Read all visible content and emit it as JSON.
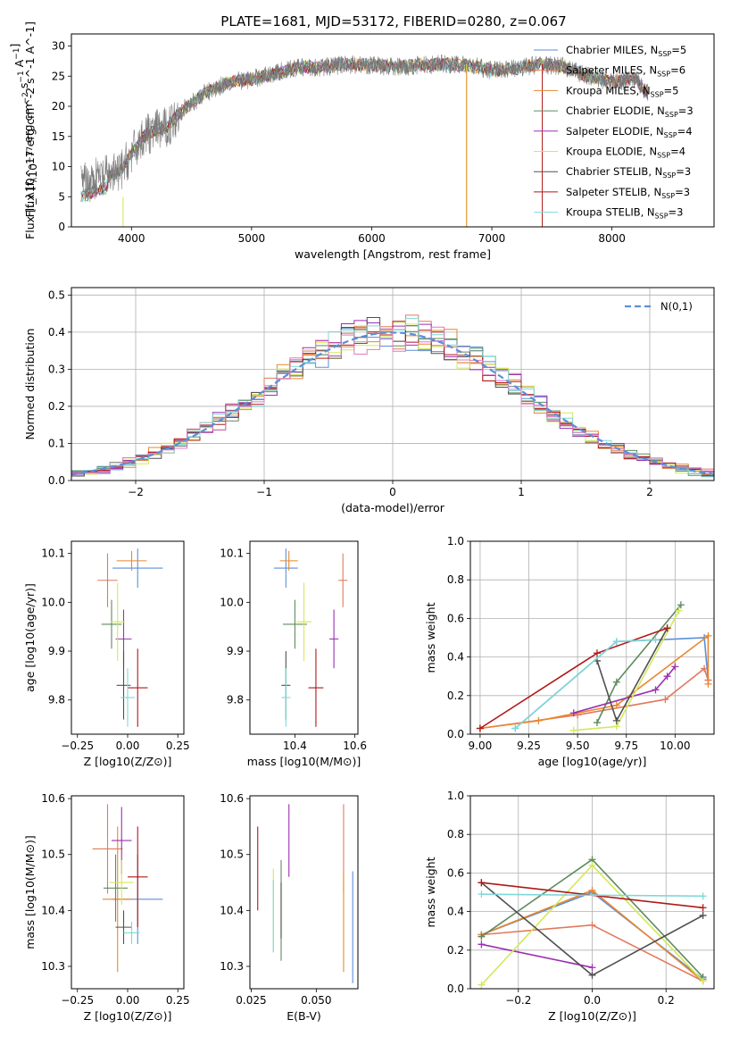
{
  "figure": {
    "title": "PLATE=1681, MJD=53172, FIBERID=0280, z=0.067",
    "series": [
      {
        "name": "Chabrier MILES",
        "nssp": "5",
        "color": "#5b8fd6"
      },
      {
        "name": "Salpeter MILES",
        "nssp": "6",
        "color": "#e07a5f"
      },
      {
        "name": "Kroupa MILES",
        "nssp": "5",
        "color": "#e8872e"
      },
      {
        "name": "Chabrier ELODIE",
        "nssp": "3",
        "color": "#5e8a5e"
      },
      {
        "name": "Salpeter ELODIE",
        "nssp": "4",
        "color": "#9b30b0"
      },
      {
        "name": "Kroupa ELODIE",
        "nssp": "4",
        "color": "#d4e85a"
      },
      {
        "name": "Chabrier STELIB",
        "nssp": "3",
        "color": "#505050"
      },
      {
        "name": "Salpeter STELIB",
        "nssp": "3",
        "color": "#b01818"
      },
      {
        "name": "Kroupa STELIB",
        "nssp": "3",
        "color": "#7fd8d8"
      }
    ],
    "extra_colors": {
      "pink": "#e377c2"
    }
  },
  "chart_data": [
    {
      "id": "spectrum",
      "type": "line",
      "title": "PLATE=1681, MJD=53172, FIBERID=0280, z=0.067",
      "xlabel": "wavelength [Angstrom, rest frame]",
      "ylabel": "Flux [f_λ10^-17 erg cm^-2 s^-1 A^-1]",
      "xlim": [
        3500,
        8850
      ],
      "ylim": [
        0,
        32
      ],
      "xticks": [
        4000,
        5000,
        6000,
        7000,
        8000
      ],
      "yticks": [
        0,
        5,
        10,
        15,
        20,
        25,
        30
      ],
      "legend": "top-right",
      "continuum": [
        [
          3580,
          7
        ],
        [
          3700,
          8
        ],
        [
          3900,
          9
        ],
        [
          4000,
          12
        ],
        [
          4100,
          15
        ],
        [
          4200,
          16
        ],
        [
          4300,
          16.5
        ],
        [
          4400,
          19
        ],
        [
          4600,
          22
        ],
        [
          4800,
          24
        ],
        [
          5000,
          24.5
        ],
        [
          5200,
          25.5
        ],
        [
          5400,
          26.5
        ],
        [
          5600,
          26.5
        ],
        [
          5800,
          27
        ],
        [
          6000,
          26.8
        ],
        [
          6200,
          26.5
        ],
        [
          6400,
          26.8
        ],
        [
          6600,
          27
        ],
        [
          6800,
          26.8
        ],
        [
          7000,
          26
        ],
        [
          7200,
          26.3
        ],
        [
          7400,
          27
        ],
        [
          7600,
          26.5
        ],
        [
          7800,
          25
        ],
        [
          8000,
          24
        ],
        [
          8200,
          24.5
        ],
        [
          8300,
          22
        ]
      ]
    },
    {
      "id": "residuals",
      "type": "bar",
      "xlabel": "(data-model)/error",
      "ylabel": "Normed distribution",
      "xlim": [
        -2.5,
        2.5
      ],
      "ylim": [
        0,
        0.52
      ],
      "xticks": [
        -2,
        -1,
        0,
        1,
        2
      ],
      "yticks": [
        0.0,
        0.1,
        0.2,
        0.3,
        0.4,
        0.5
      ],
      "grid": true,
      "legend": "top-right",
      "legend_label": "N(0,1)",
      "bin_width": 0.1
    },
    {
      "id": "age-vs-Z",
      "type": "scatter",
      "xlabel": "Z [log10(Z/Z⊙)]",
      "ylabel": "age [log10(age/yr)]",
      "xlim": [
        -0.28,
        0.28
      ],
      "ylim": [
        9.73,
        10.125
      ],
      "xticks": [
        -0.25,
        0.0,
        0.25
      ],
      "yticks": [
        9.8,
        9.9,
        10.0,
        10.1
      ],
      "points": [
        {
          "s": 0,
          "x": 0.05,
          "y": 10.07,
          "ex": 0.25,
          "ey": 0.04
        },
        {
          "s": 1,
          "x": -0.1,
          "y": 10.045,
          "ex": 0.1,
          "ey": 0.055
        },
        {
          "s": 2,
          "x": 0.02,
          "y": 10.085,
          "ex": 0.15,
          "ey": 0.02
        },
        {
          "s": 3,
          "x": -0.08,
          "y": 9.955,
          "ex": 0.1,
          "ey": 0.05
        },
        {
          "s": 4,
          "x": -0.02,
          "y": 9.925,
          "ex": 0.08,
          "ey": 0.06
        },
        {
          "s": 5,
          "x": -0.05,
          "y": 9.96,
          "ex": 0.07,
          "ey": 0.08
        },
        {
          "s": 6,
          "x": -0.02,
          "y": 9.83,
          "ex": 0.07,
          "ey": 0.07
        },
        {
          "s": 7,
          "x": 0.05,
          "y": 9.825,
          "ex": 0.1,
          "ey": 0.08
        },
        {
          "s": 8,
          "x": 0.0,
          "y": 9.805,
          "ex": 0.07,
          "ey": 0.06
        }
      ]
    },
    {
      "id": "age-vs-mass",
      "type": "scatter",
      "xlabel": "mass [log10(M/M⊙)]",
      "ylabel": "",
      "xlim": [
        10.25,
        10.61
      ],
      "ylim": [
        9.73,
        10.125
      ],
      "xticks": [
        10.4,
        10.6
      ],
      "yticks": [
        9.8,
        9.9,
        10.0,
        10.1
      ],
      "points": [
        {
          "s": 0,
          "x": 10.37,
          "y": 10.07,
          "ex": 0.08,
          "ey": 0.04
        },
        {
          "s": 1,
          "x": 10.56,
          "y": 10.045,
          "ex": 0.03,
          "ey": 0.055
        },
        {
          "s": 2,
          "x": 10.38,
          "y": 10.085,
          "ex": 0.06,
          "ey": 0.02
        },
        {
          "s": 3,
          "x": 10.4,
          "y": 9.955,
          "ex": 0.08,
          "ey": 0.05
        },
        {
          "s": 4,
          "x": 10.53,
          "y": 9.925,
          "ex": 0.03,
          "ey": 0.06
        },
        {
          "s": 5,
          "x": 10.43,
          "y": 9.96,
          "ex": 0.05,
          "ey": 0.08
        },
        {
          "s": 6,
          "x": 10.37,
          "y": 9.83,
          "ex": 0.03,
          "ey": 0.07
        },
        {
          "s": 7,
          "x": 10.47,
          "y": 9.825,
          "ex": 0.05,
          "ey": 0.08
        },
        {
          "s": 8,
          "x": 10.37,
          "y": 9.805,
          "ex": 0.03,
          "ey": 0.06
        }
      ]
    },
    {
      "id": "mass-weight-vs-age",
      "type": "line",
      "xlabel": "age [log10(age/yr)]",
      "ylabel": "mass weight",
      "xlim": [
        8.95,
        10.2
      ],
      "ylim": [
        0,
        1
      ],
      "xticks": [
        9.0,
        9.25,
        9.5,
        9.75,
        10.0
      ],
      "yticks": [
        0.0,
        0.2,
        0.4,
        0.6,
        0.8,
        1.0
      ],
      "grid": true,
      "series": [
        {
          "s": 0,
          "points": [
            [
              9.18,
              0.03
            ],
            [
              9.7,
              0.48
            ],
            [
              10.15,
              0.5
            ],
            [
              10.17,
              0.28
            ]
          ]
        },
        {
          "s": 1,
          "points": [
            [
              9.0,
              0.03
            ],
            [
              9.5,
              0.1
            ],
            [
              9.95,
              0.18
            ],
            [
              10.15,
              0.34
            ],
            [
              10.17,
              0.28
            ]
          ]
        },
        {
          "s": 2,
          "points": [
            [
              9.0,
              0.03
            ],
            [
              9.3,
              0.07
            ],
            [
              9.7,
              0.15
            ],
            [
              10.17,
              0.51
            ],
            [
              10.17,
              0.26
            ]
          ]
        },
        {
          "s": 3,
          "points": [
            [
              9.6,
              0.06
            ],
            [
              9.7,
              0.27
            ],
            [
              10.03,
              0.67
            ]
          ]
        },
        {
          "s": 4,
          "points": [
            [
              9.48,
              0.11
            ],
            [
              9.9,
              0.23
            ],
            [
              9.96,
              0.3
            ],
            [
              10.0,
              0.35
            ]
          ]
        },
        {
          "s": 5,
          "points": [
            [
              9.48,
              0.02
            ],
            [
              9.7,
              0.04
            ],
            [
              10.02,
              0.64
            ]
          ]
        },
        {
          "s": 6,
          "points": [
            [
              9.6,
              0.38
            ],
            [
              9.7,
              0.07
            ],
            [
              9.96,
              0.55
            ]
          ]
        },
        {
          "s": 7,
          "points": [
            [
              9.0,
              0.03
            ],
            [
              9.6,
              0.42
            ],
            [
              9.96,
              0.55
            ]
          ]
        },
        {
          "s": 8,
          "points": [
            [
              9.18,
              0.03
            ],
            [
              9.7,
              0.48
            ],
            [
              9.9,
              0.49
            ]
          ]
        }
      ]
    },
    {
      "id": "mass-vs-Z",
      "type": "scatter",
      "xlabel": "Z [log10(Z/Z⊙)]",
      "ylabel": "mass [log10(M/M⊙)]",
      "xlim": [
        -0.28,
        0.28
      ],
      "ylim": [
        10.26,
        10.605
      ],
      "xticks": [
        -0.25,
        0.0,
        0.25
      ],
      "yticks": [
        10.3,
        10.4,
        10.5,
        10.6
      ],
      "points": [
        {
          "s": 0,
          "x": 0.05,
          "y": 10.42,
          "ex": 0.25,
          "ey": 0.08
        },
        {
          "s": 1,
          "x": -0.1,
          "y": 10.51,
          "ex": 0.15,
          "ey": 0.08
        },
        {
          "s": 2,
          "x": -0.05,
          "y": 10.42,
          "ex": 0.15,
          "ey": 0.13
        },
        {
          "s": 3,
          "x": -0.06,
          "y": 10.44,
          "ex": 0.12,
          "ey": 0.06
        },
        {
          "s": 4,
          "x": -0.03,
          "y": 10.525,
          "ex": 0.1,
          "ey": 0.06
        },
        {
          "s": 5,
          "x": -0.03,
          "y": 10.45,
          "ex": 0.12,
          "ey": 0.04
        },
        {
          "s": 6,
          "x": -0.02,
          "y": 10.37,
          "ex": 0.08,
          "ey": 0.03
        },
        {
          "s": 7,
          "x": 0.05,
          "y": 10.46,
          "ex": 0.1,
          "ey": 0.09
        },
        {
          "s": 8,
          "x": 0.02,
          "y": 10.36,
          "ex": 0.08,
          "ey": 0.02
        }
      ]
    },
    {
      "id": "mass-vs-EBV",
      "type": "scatter",
      "xlabel": "E(B-V)",
      "ylabel": "",
      "xlim": [
        0.0245,
        0.066
      ],
      "ylim": [
        10.26,
        10.605
      ],
      "xticks": [
        0.025,
        0.05
      ],
      "yticks": [
        10.3,
        10.4,
        10.5,
        10.6
      ],
      "points": [
        {
          "s": 0,
          "x": 0.064,
          "y": 10.37,
          "ey": 0.1
        },
        {
          "s": 1,
          "x": 0.0605,
          "y": 10.51,
          "ey": 0.08
        },
        {
          "s": 2,
          "x": 0.0605,
          "y": 10.38,
          "ey": 0.09
        },
        {
          "s": 3,
          "x": 0.0365,
          "y": 10.4,
          "ey": 0.09
        },
        {
          "s": 4,
          "x": 0.0395,
          "y": 10.525,
          "ey": 0.065
        },
        {
          "s": 5,
          "x": 0.0335,
          "y": 10.4,
          "ey": 0.075
        },
        {
          "s": 6,
          "x": 0.0365,
          "y": 10.4,
          "ey": 0.05
        },
        {
          "s": 7,
          "x": 0.0275,
          "y": 10.475,
          "ey": 0.075
        },
        {
          "s": 8,
          "x": 0.0335,
          "y": 10.39,
          "ey": 0.065
        }
      ]
    },
    {
      "id": "mass-weight-vs-Z",
      "type": "line",
      "xlabel": "Z [log10(Z/Z⊙)]",
      "ylabel": "mass weight",
      "xlim": [
        -0.33,
        0.33
      ],
      "ylim": [
        0,
        1
      ],
      "xticks": [
        -0.2,
        0.0,
        0.2
      ],
      "yticks": [
        0.0,
        0.2,
        0.4,
        0.6,
        0.8,
        1.0
      ],
      "grid": true,
      "series": [
        {
          "s": 0,
          "points": [
            [
              -0.3,
              0.28
            ],
            [
              0.0,
              0.5
            ],
            [
              0.3,
              0.05
            ]
          ]
        },
        {
          "s": 1,
          "points": [
            [
              -0.3,
              0.28
            ],
            [
              0.0,
              0.33
            ],
            [
              0.3,
              0.04
            ]
          ]
        },
        {
          "s": 2,
          "points": [
            [
              -0.3,
              0.28
            ],
            [
              0.0,
              0.51
            ],
            [
              0.3,
              0.04
            ]
          ]
        },
        {
          "s": 3,
          "points": [
            [
              -0.3,
              0.27
            ],
            [
              0.0,
              0.67
            ],
            [
              0.3,
              0.06
            ]
          ]
        },
        {
          "s": 4,
          "points": [
            [
              -0.3,
              0.23
            ],
            [
              0.0,
              0.11
            ]
          ]
        },
        {
          "s": 5,
          "points": [
            [
              -0.3,
              0.02
            ],
            [
              0.0,
              0.64
            ],
            [
              0.3,
              0.04
            ]
          ]
        },
        {
          "s": 6,
          "points": [
            [
              -0.3,
              0.55
            ],
            [
              0.0,
              0.07
            ],
            [
              0.3,
              0.38
            ]
          ]
        },
        {
          "s": 7,
          "points": [
            [
              -0.3,
              0.55
            ],
            [
              0.3,
              0.42
            ]
          ]
        },
        {
          "s": 8,
          "points": [
            [
              -0.3,
              0.49
            ],
            [
              0.3,
              0.48
            ]
          ]
        }
      ]
    }
  ]
}
